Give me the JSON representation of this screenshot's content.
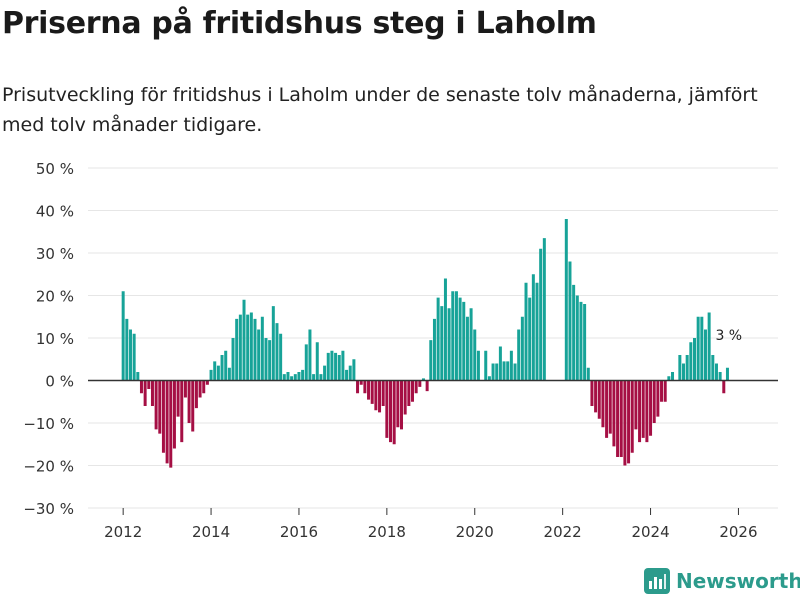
{
  "title": "Priserna på fritidshus steg i Laholm",
  "subtitle": "Prisutveckling för fritidshus i Laholm under de senaste tolv månaderna, jämfört med tolv månader tidigare.",
  "brand": "Newsworthy",
  "colors": {
    "positive": "#17a398",
    "negative": "#a50f44",
    "brand": "#2c9b8c",
    "grid": "#e6e6e6",
    "axis": "#333333"
  },
  "chart_data": {
    "type": "bar",
    "ylim": [
      -30,
      50
    ],
    "yticks": [
      -30,
      -20,
      -10,
      0,
      10,
      20,
      30,
      40,
      50
    ],
    "ytick_labels": [
      "−30 %",
      "−20 %",
      "−10 %",
      "0 %",
      "10 %",
      "20 %",
      "30 %",
      "40 %",
      "50 %"
    ],
    "xlim": [
      2011.2,
      2026.9
    ],
    "xticks": [
      2012,
      2014,
      2016,
      2018,
      2020,
      2022,
      2024,
      2026
    ],
    "xtick_labels": [
      "2012",
      "2014",
      "2016",
      "2018",
      "2020",
      "2022",
      "2024",
      "2026"
    ],
    "start": {
      "year": 2012,
      "month": 1
    },
    "values": [
      21,
      14.5,
      12,
      11,
      2,
      -3,
      -6,
      -2,
      -6,
      -11.5,
      -12.5,
      -17,
      -19.5,
      -20.5,
      -16,
      -8.5,
      -14.5,
      -4,
      -10,
      -12,
      -6.5,
      -4,
      -3,
      -1,
      2.5,
      4.5,
      3.5,
      6,
      7,
      3,
      10,
      14.5,
      15.5,
      19,
      15.5,
      16,
      14.5,
      12,
      15,
      10,
      9.5,
      17.5,
      13.5,
      11,
      1.5,
      2,
      1,
      1.5,
      2,
      2.5,
      8.5,
      12,
      1.5,
      9,
      1.5,
      3.5,
      6.5,
      7,
      6.5,
      6,
      7,
      2.5,
      3.5,
      5,
      -3,
      -1,
      -3,
      -4.5,
      -5.5,
      -7,
      -7.5,
      -6,
      -13.5,
      -14.5,
      -15,
      -11,
      -11.5,
      -8,
      -6,
      -5,
      -3,
      -1.5,
      0.5,
      -2.5,
      9.5,
      14.5,
      19.5,
      17.5,
      24,
      17,
      21,
      21,
      19.5,
      18.5,
      15,
      17,
      12,
      7,
      0,
      7,
      1,
      4,
      4,
      8,
      4.5,
      4.5,
      7,
      4,
      12,
      15,
      23,
      19.5,
      25,
      23,
      31,
      33.5,
      0,
      0,
      0,
      0,
      0,
      38,
      28,
      22.5,
      20,
      18.5,
      18,
      3,
      -6,
      -7.5,
      -9,
      -11,
      -13.5,
      -12.5,
      -15.5,
      -18,
      -18,
      -20,
      -19.5,
      -17,
      -11.5,
      -14.5,
      -13.5,
      -14.5,
      -13,
      -10,
      -8.5,
      -5,
      -5,
      1,
      2,
      0,
      6,
      4,
      6,
      9,
      10,
      15,
      15,
      12,
      16,
      6,
      4,
      2,
      -3,
      3
    ],
    "last_label": "3 %"
  }
}
